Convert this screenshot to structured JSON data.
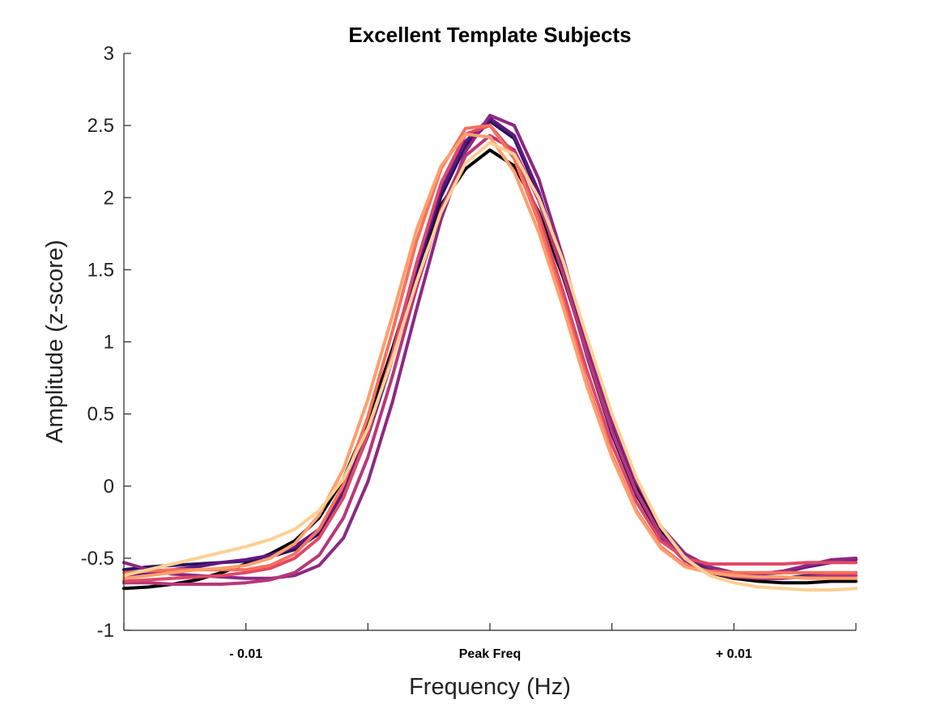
{
  "chart_data": {
    "type": "line",
    "title": "Excellent Template Subjects",
    "xlabel": "Frequency (Hz)",
    "ylabel": "Amplitude (z-score)",
    "ylim": [
      -1,
      3
    ],
    "xlim": [
      -0.015,
      0.015
    ],
    "yticks": [
      -1,
      -0.5,
      0,
      0.5,
      1,
      1.5,
      2,
      2.5,
      3
    ],
    "ytick_labels": [
      "-1",
      "-0.5",
      "0",
      "0.5",
      "1",
      "1.5",
      "2",
      "2.5",
      "3"
    ],
    "xticks": [
      -0.015,
      -0.01,
      -0.005,
      0,
      0.005,
      0.01,
      0.015
    ],
    "xtick_labels": [
      "",
      "- 0.01",
      "",
      "Peak Freq",
      "",
      "+ 0.01",
      ""
    ],
    "grid": false,
    "box": false,
    "x": [
      -0.015,
      -0.014,
      -0.013,
      -0.012,
      -0.011,
      -0.01,
      -0.009,
      -0.008,
      -0.007,
      -0.006,
      -0.005,
      -0.004,
      -0.003,
      -0.002,
      -0.001,
      0.0,
      0.001,
      0.002,
      0.003,
      0.004,
      0.005,
      0.006,
      0.007,
      0.008,
      0.009,
      0.01,
      0.011,
      0.012,
      0.013,
      0.014,
      0.015
    ],
    "series": [
      {
        "color": "#000004",
        "values": [
          -0.71,
          -0.7,
          -0.68,
          -0.65,
          -0.6,
          -0.54,
          -0.47,
          -0.38,
          -0.22,
          0.05,
          0.45,
          0.95,
          1.5,
          1.95,
          2.2,
          2.33,
          2.22,
          1.9,
          1.45,
          0.92,
          0.42,
          0.01,
          -0.3,
          -0.5,
          -0.6,
          -0.64,
          -0.66,
          -0.67,
          -0.67,
          -0.66,
          -0.66
        ]
      },
      {
        "color": "#2c115f",
        "values": [
          -0.58,
          -0.56,
          -0.55,
          -0.54,
          -0.53,
          -0.52,
          -0.49,
          -0.44,
          -0.33,
          -0.07,
          0.35,
          0.88,
          1.48,
          2.01,
          2.36,
          2.53,
          2.41,
          2.02,
          1.48,
          0.89,
          0.36,
          -0.06,
          -0.35,
          -0.52,
          -0.58,
          -0.62,
          -0.64,
          -0.64,
          -0.62,
          -0.61,
          -0.6
        ]
      },
      {
        "color": "#5f187f",
        "values": [
          -0.62,
          -0.6,
          -0.58,
          -0.56,
          -0.53,
          -0.51,
          -0.48,
          -0.42,
          -0.3,
          -0.04,
          0.38,
          0.91,
          1.52,
          2.05,
          2.39,
          2.55,
          2.43,
          2.04,
          1.5,
          0.92,
          0.39,
          -0.03,
          -0.33,
          -0.5,
          -0.57,
          -0.6,
          -0.61,
          -0.6,
          -0.56,
          -0.53,
          -0.51
        ]
      },
      {
        "color": "#8c2981",
        "values": [
          -0.53,
          -0.58,
          -0.61,
          -0.62,
          -0.63,
          -0.64,
          -0.64,
          -0.62,
          -0.55,
          -0.36,
          0.03,
          0.58,
          1.23,
          1.85,
          2.32,
          2.57,
          2.5,
          2.13,
          1.58,
          0.98,
          0.45,
          0.03,
          -0.28,
          -0.47,
          -0.56,
          -0.6,
          -0.61,
          -0.59,
          -0.55,
          -0.51,
          -0.5
        ]
      },
      {
        "color": "#b73779",
        "values": [
          -0.67,
          -0.67,
          -0.68,
          -0.68,
          -0.68,
          -0.67,
          -0.65,
          -0.6,
          -0.48,
          -0.22,
          0.2,
          0.76,
          1.38,
          1.92,
          2.29,
          2.43,
          2.33,
          1.98,
          1.47,
          0.9,
          0.38,
          -0.04,
          -0.34,
          -0.52,
          -0.6,
          -0.63,
          -0.64,
          -0.64,
          -0.63,
          -0.62,
          -0.62
        ]
      },
      {
        "color": "#de4968",
        "values": [
          -0.66,
          -0.65,
          -0.64,
          -0.63,
          -0.62,
          -0.6,
          -0.57,
          -0.5,
          -0.36,
          -0.08,
          0.36,
          0.92,
          1.55,
          2.1,
          2.44,
          2.5,
          2.3,
          1.88,
          1.35,
          0.79,
          0.29,
          -0.11,
          -0.38,
          -0.5,
          -0.54,
          -0.54,
          -0.54,
          -0.54,
          -0.53,
          -0.53,
          -0.53
        ]
      },
      {
        "color": "#f7705c",
        "values": [
          -0.6,
          -0.59,
          -0.58,
          -0.58,
          -0.58,
          -0.58,
          -0.55,
          -0.47,
          -0.3,
          0.01,
          0.48,
          1.07,
          1.7,
          2.2,
          2.48,
          2.5,
          2.27,
          1.83,
          1.28,
          0.71,
          0.22,
          -0.17,
          -0.42,
          -0.55,
          -0.59,
          -0.6,
          -0.6,
          -0.6,
          -0.6,
          -0.6,
          -0.6
        ]
      },
      {
        "color": "#fe9f6d",
        "values": [
          -0.64,
          -0.62,
          -0.6,
          -0.58,
          -0.57,
          -0.55,
          -0.5,
          -0.4,
          -0.2,
          0.12,
          0.6,
          1.18,
          1.78,
          2.22,
          2.44,
          2.42,
          2.18,
          1.76,
          1.24,
          0.68,
          0.2,
          -0.18,
          -0.43,
          -0.56,
          -0.6,
          -0.62,
          -0.63,
          -0.63,
          -0.64,
          -0.64,
          -0.64
        ]
      },
      {
        "color": "#fecf92",
        "values": [
          -0.62,
          -0.58,
          -0.54,
          -0.5,
          -0.46,
          -0.42,
          -0.37,
          -0.3,
          -0.17,
          0.05,
          0.4,
          0.88,
          1.42,
          1.9,
          2.24,
          2.38,
          2.3,
          2.0,
          1.56,
          1.02,
          0.5,
          0.06,
          -0.28,
          -0.5,
          -0.62,
          -0.67,
          -0.7,
          -0.71,
          -0.72,
          -0.72,
          -0.71
        ]
      }
    ]
  }
}
